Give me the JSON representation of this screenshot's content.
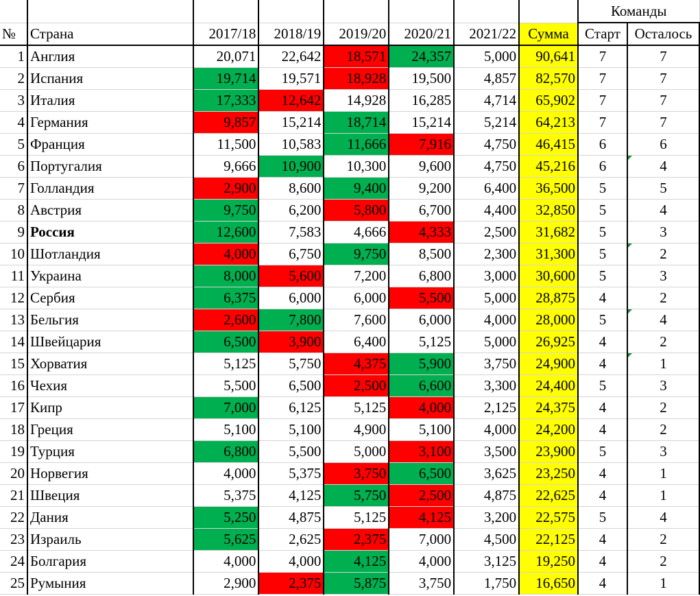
{
  "header": {
    "no": "№",
    "country": "Страна",
    "seasons": [
      "2017/18",
      "2018/19",
      "2019/20",
      "2020/21",
      "2021/22"
    ],
    "sum": "Сумма",
    "teams_group": "Команды",
    "start": "Старт",
    "remaining": "Осталось"
  },
  "colors": {
    "green": "#00b050",
    "red": "#ff0000",
    "yellow": "#ffff00"
  },
  "rows": [
    {
      "n": "1",
      "country": "Англия",
      "v": [
        "20,071",
        "22,642",
        "18,571",
        "24,357",
        "5,000"
      ],
      "hl": [
        "",
        "",
        "red",
        "green",
        ""
      ],
      "sum": "90,641",
      "start": "7",
      "left": "7"
    },
    {
      "n": "2",
      "country": "Испания",
      "v": [
        "19,714",
        "19,571",
        "18,928",
        "19,500",
        "4,857"
      ],
      "hl": [
        "green",
        "",
        "red",
        "",
        ""
      ],
      "sum": "82,570",
      "start": "7",
      "left": "7"
    },
    {
      "n": "3",
      "country": "Италия",
      "v": [
        "17,333",
        "12,642",
        "14,928",
        "16,285",
        "4,714"
      ],
      "hl": [
        "green",
        "red",
        "",
        "",
        ""
      ],
      "sum": "65,902",
      "start": "7",
      "left": "7"
    },
    {
      "n": "4",
      "country": "Германия",
      "v": [
        "9,857",
        "15,214",
        "18,714",
        "15,214",
        "5,214"
      ],
      "hl": [
        "red",
        "",
        "green",
        "",
        ""
      ],
      "sum": "64,213",
      "start": "7",
      "left": "7"
    },
    {
      "n": "5",
      "country": "Франция",
      "v": [
        "11,500",
        "10,583",
        "11,666",
        "7,916",
        "4,750"
      ],
      "hl": [
        "",
        "",
        "green",
        "red",
        ""
      ],
      "sum": "46,415",
      "start": "6",
      "left": "6"
    },
    {
      "n": "6",
      "country": "Португалия",
      "v": [
        "9,666",
        "10,900",
        "10,300",
        "9,600",
        "4,750"
      ],
      "hl": [
        "",
        "green",
        "",
        "",
        ""
      ],
      "sum": "45,216",
      "start": "6",
      "left": "4",
      "mark": true
    },
    {
      "n": "7",
      "country": "Голландия",
      "v": [
        "2,900",
        "8,600",
        "9,400",
        "9,200",
        "6,400"
      ],
      "hl": [
        "red",
        "",
        "green",
        "",
        ""
      ],
      "sum": "36,500",
      "start": "5",
      "left": "5"
    },
    {
      "n": "8",
      "country": "Австрия",
      "v": [
        "9,750",
        "6,200",
        "5,800",
        "6,700",
        "4,400"
      ],
      "hl": [
        "green",
        "",
        "red",
        "",
        ""
      ],
      "sum": "32,850",
      "start": "5",
      "left": "4"
    },
    {
      "n": "9",
      "country": "Россия",
      "v": [
        "12,600",
        "7,583",
        "4,666",
        "4,333",
        "2,500"
      ],
      "hl": [
        "green",
        "",
        "",
        "red",
        ""
      ],
      "sum": "31,682",
      "start": "5",
      "left": "3",
      "bold": true
    },
    {
      "n": "10",
      "country": "Шотландия",
      "v": [
        "4,000",
        "6,750",
        "9,750",
        "8,500",
        "2,300"
      ],
      "hl": [
        "red",
        "",
        "green",
        "",
        ""
      ],
      "sum": "31,300",
      "start": "5",
      "left": "2",
      "mark": true
    },
    {
      "n": "11",
      "country": "Украина",
      "v": [
        "8,000",
        "5,600",
        "7,200",
        "6,800",
        "3,000"
      ],
      "hl": [
        "green",
        "red",
        "",
        "",
        ""
      ],
      "sum": "30,600",
      "start": "5",
      "left": "3"
    },
    {
      "n": "12",
      "country": "Сербия",
      "v": [
        "6,375",
        "6,000",
        "6,000",
        "5,500",
        "5,000"
      ],
      "hl": [
        "green",
        "",
        "",
        "red",
        ""
      ],
      "sum": "28,875",
      "start": "4",
      "left": "2"
    },
    {
      "n": "13",
      "country": "Бельгия",
      "v": [
        "2,600",
        "7,800",
        "7,600",
        "6,000",
        "4,000"
      ],
      "hl": [
        "red",
        "green",
        "",
        "",
        ""
      ],
      "sum": "28,000",
      "start": "5",
      "left": "4",
      "mark": true
    },
    {
      "n": "14",
      "country": "Швейцария",
      "v": [
        "6,500",
        "3,900",
        "6,400",
        "5,125",
        "5,000"
      ],
      "hl": [
        "green",
        "red",
        "",
        "",
        ""
      ],
      "sum": "26,925",
      "start": "4",
      "left": "2"
    },
    {
      "n": "15",
      "country": "Хорватия",
      "v": [
        "5,125",
        "5,750",
        "4,375",
        "5,900",
        "3,750"
      ],
      "hl": [
        "",
        "",
        "red",
        "green",
        ""
      ],
      "sum": "24,900",
      "start": "4",
      "left": "1",
      "mark": true
    },
    {
      "n": "16",
      "country": "Чехия",
      "v": [
        "5,500",
        "6,500",
        "2,500",
        "6,600",
        "3,300"
      ],
      "hl": [
        "",
        "",
        "red",
        "green",
        ""
      ],
      "sum": "24,400",
      "start": "5",
      "left": "3"
    },
    {
      "n": "17",
      "country": "Кипр",
      "v": [
        "7,000",
        "6,125",
        "5,125",
        "4,000",
        "2,125"
      ],
      "hl": [
        "green",
        "",
        "",
        "red",
        ""
      ],
      "sum": "24,375",
      "start": "4",
      "left": "2"
    },
    {
      "n": "18",
      "country": "Греция",
      "v": [
        "5,100",
        "5,100",
        "4,900",
        "5,100",
        "4,000"
      ],
      "hl": [
        "",
        "",
        "",
        "",
        ""
      ],
      "sum": "24,200",
      "start": "4",
      "left": "2"
    },
    {
      "n": "19",
      "country": "Турция",
      "v": [
        "6,800",
        "5,500",
        "5,000",
        "3,100",
        "3,500"
      ],
      "hl": [
        "green",
        "",
        "",
        "red",
        ""
      ],
      "sum": "23,900",
      "start": "5",
      "left": "3"
    },
    {
      "n": "20",
      "country": "Норвегия",
      "v": [
        "4,000",
        "5,375",
        "3,750",
        "6,500",
        "3,625"
      ],
      "hl": [
        "",
        "",
        "red",
        "green",
        ""
      ],
      "sum": "23,250",
      "start": "4",
      "left": "1"
    },
    {
      "n": "21",
      "country": "Швеция",
      "v": [
        "5,375",
        "4,125",
        "5,750",
        "2,500",
        "4,875"
      ],
      "hl": [
        "",
        "",
        "green",
        "red",
        ""
      ],
      "sum": "22,625",
      "start": "4",
      "left": "1"
    },
    {
      "n": "22",
      "country": "Дания",
      "v": [
        "5,250",
        "4,875",
        "5,125",
        "4,125",
        "3,200"
      ],
      "hl": [
        "green",
        "",
        "",
        "red",
        ""
      ],
      "sum": "22,575",
      "start": "5",
      "left": "4"
    },
    {
      "n": "23",
      "country": "Израиль",
      "v": [
        "5,625",
        "2,625",
        "2,375",
        "7,000",
        "4,500"
      ],
      "hl": [
        "green",
        "",
        "red",
        "",
        ""
      ],
      "sum": "22,125",
      "start": "4",
      "left": "2"
    },
    {
      "n": "24",
      "country": "Болгария",
      "v": [
        "4,000",
        "4,000",
        "4,125",
        "4,000",
        "3,125"
      ],
      "hl": [
        "",
        "",
        "green",
        "",
        ""
      ],
      "sum": "19,250",
      "start": "4",
      "left": "2"
    },
    {
      "n": "25",
      "country": "Румыния",
      "v": [
        "2,900",
        "2,375",
        "5,875",
        "3,750",
        "1,750"
      ],
      "hl": [
        "",
        "red",
        "green",
        "",
        ""
      ],
      "sum": "16,650",
      "start": "4",
      "left": "1"
    }
  ]
}
